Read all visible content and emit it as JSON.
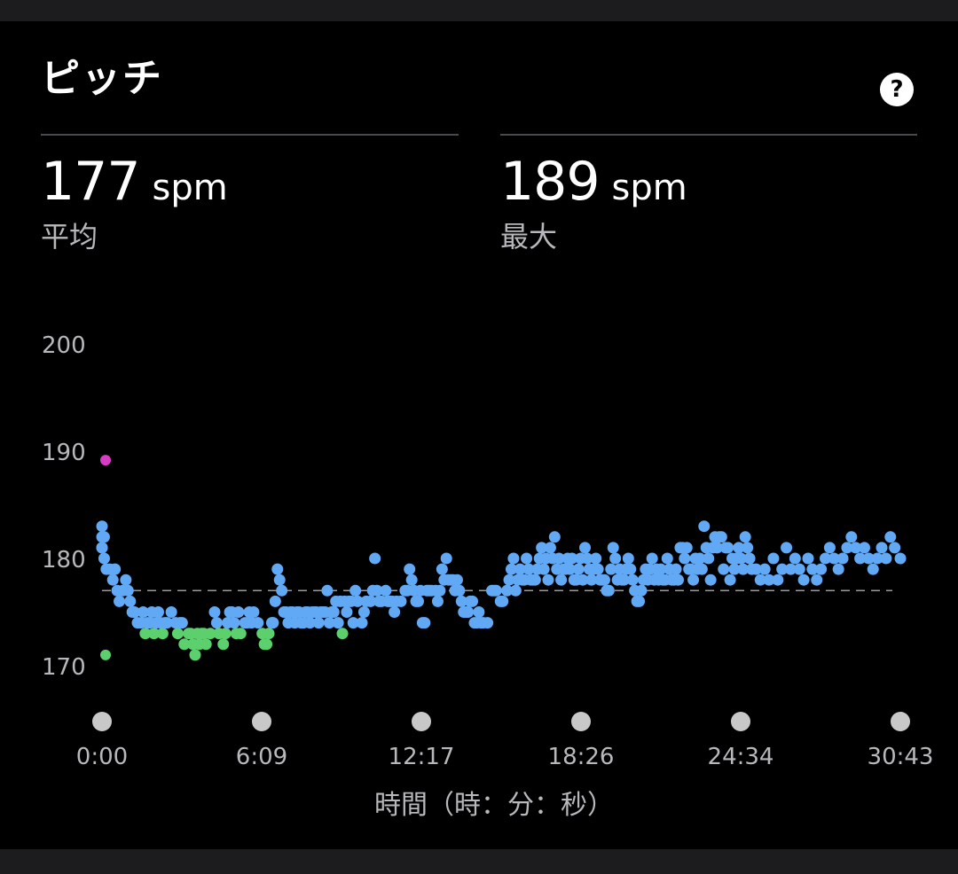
{
  "title": "ピッチ",
  "help_icon": "question-circle-icon",
  "help_glyph": "?",
  "stats": [
    {
      "value": "177",
      "unit": "spm",
      "label": "平均"
    },
    {
      "value": "189",
      "unit": "spm",
      "label": "最大"
    }
  ],
  "chart_data": {
    "type": "scatter",
    "xlabel": "時間（時：分：秒）",
    "ylabel": "",
    "x_tick_labels": [
      "0:00",
      "6:09",
      "12:17",
      "18:26",
      "24:34",
      "30:43"
    ],
    "x_range_seconds": [
      0,
      1843
    ],
    "y_ticks": [
      170,
      180,
      190,
      200
    ],
    "ylim": [
      166,
      200
    ],
    "average_line": 177,
    "colors": {
      "above_173": "#62a9f5",
      "below_174": "#5cd06c",
      "max": "#d63dc4",
      "average_line": "#9a9a9a",
      "tick_marker": "#c8c8c8"
    },
    "points": [
      [
        0,
        183
      ],
      [
        0,
        182
      ],
      [
        0,
        181
      ],
      [
        0,
        181
      ],
      [
        5,
        182
      ],
      [
        5,
        180
      ],
      [
        10,
        179
      ],
      [
        18,
        179
      ],
      [
        25,
        178
      ],
      [
        30,
        179
      ],
      [
        35,
        177
      ],
      [
        40,
        176
      ],
      [
        48,
        177
      ],
      [
        55,
        178
      ],
      [
        60,
        177
      ],
      [
        65,
        176
      ],
      [
        70,
        175
      ],
      [
        75,
        175
      ],
      [
        82,
        174
      ],
      [
        90,
        174
      ],
      [
        95,
        175
      ],
      [
        100,
        173
      ],
      [
        105,
        174
      ],
      [
        110,
        174
      ],
      [
        115,
        175
      ],
      [
        120,
        173
      ],
      [
        125,
        174
      ],
      [
        130,
        175
      ],
      [
        135,
        174
      ],
      [
        140,
        173
      ],
      [
        145,
        174
      ],
      [
        150,
        174
      ],
      [
        160,
        175
      ],
      [
        170,
        174
      ],
      [
        175,
        173
      ],
      [
        180,
        174
      ],
      [
        185,
        174
      ],
      [
        190,
        172
      ],
      [
        200,
        173
      ],
      [
        205,
        173
      ],
      [
        210,
        172
      ],
      [
        215,
        171
      ],
      [
        220,
        173
      ],
      [
        225,
        172
      ],
      [
        230,
        173
      ],
      [
        235,
        173
      ],
      [
        240,
        172
      ],
      [
        250,
        173
      ],
      [
        260,
        175
      ],
      [
        265,
        174
      ],
      [
        270,
        173
      ],
      [
        280,
        172
      ],
      [
        285,
        173
      ],
      [
        290,
        174
      ],
      [
        295,
        175
      ],
      [
        300,
        175
      ],
      [
        305,
        174
      ],
      [
        310,
        173
      ],
      [
        315,
        175
      ],
      [
        320,
        173
      ],
      [
        330,
        174
      ],
      [
        335,
        174
      ],
      [
        340,
        175
      ],
      [
        345,
        174
      ],
      [
        350,
        175
      ],
      [
        360,
        174
      ],
      [
        370,
        173
      ],
      [
        375,
        172
      ],
      [
        380,
        172
      ],
      [
        385,
        173
      ],
      [
        392,
        174
      ],
      [
        395,
        174
      ],
      [
        400,
        176
      ],
      [
        405,
        179
      ],
      [
        410,
        178
      ],
      [
        415,
        177
      ],
      [
        420,
        175
      ],
      [
        425,
        175
      ],
      [
        430,
        174
      ],
      [
        435,
        175
      ],
      [
        440,
        175
      ],
      [
        445,
        174
      ],
      [
        450,
        175
      ],
      [
        455,
        175
      ],
      [
        460,
        174
      ],
      [
        465,
        174
      ],
      [
        470,
        175
      ],
      [
        475,
        175
      ],
      [
        480,
        174
      ],
      [
        485,
        175
      ],
      [
        490,
        175
      ],
      [
        495,
        175
      ],
      [
        500,
        174
      ],
      [
        505,
        175
      ],
      [
        510,
        175
      ],
      [
        515,
        175
      ],
      [
        520,
        177
      ],
      [
        525,
        174
      ],
      [
        530,
        175
      ],
      [
        535,
        175
      ],
      [
        540,
        176
      ],
      [
        545,
        174
      ],
      [
        550,
        176
      ],
      [
        555,
        173
      ],
      [
        560,
        176
      ],
      [
        565,
        175
      ],
      [
        570,
        176
      ],
      [
        575,
        176
      ],
      [
        580,
        174
      ],
      [
        585,
        177
      ],
      [
        590,
        176
      ],
      [
        600,
        174
      ],
      [
        605,
        175
      ],
      [
        610,
        176
      ],
      [
        620,
        176
      ],
      [
        625,
        177
      ],
      [
        630,
        180
      ],
      [
        635,
        177
      ],
      [
        640,
        176
      ],
      [
        645,
        176
      ],
      [
        655,
        177
      ],
      [
        660,
        176
      ],
      [
        665,
        176
      ],
      [
        670,
        176
      ],
      [
        675,
        175
      ],
      [
        680,
        176
      ],
      [
        690,
        176
      ],
      [
        700,
        177
      ],
      [
        705,
        177
      ],
      [
        710,
        179
      ],
      [
        715,
        178
      ],
      [
        720,
        177
      ],
      [
        725,
        176
      ],
      [
        730,
        176
      ],
      [
        735,
        177
      ],
      [
        740,
        174
      ],
      [
        745,
        174
      ],
      [
        750,
        177
      ],
      [
        755,
        177
      ],
      [
        760,
        177
      ],
      [
        770,
        177
      ],
      [
        775,
        176
      ],
      [
        780,
        177
      ],
      [
        785,
        179
      ],
      [
        790,
        178
      ],
      [
        795,
        180
      ],
      [
        800,
        178
      ],
      [
        805,
        178
      ],
      [
        810,
        178
      ],
      [
        815,
        177
      ],
      [
        820,
        178
      ],
      [
        825,
        177
      ],
      [
        830,
        176
      ],
      [
        835,
        175
      ],
      [
        840,
        175
      ],
      [
        845,
        175
      ],
      [
        850,
        176
      ],
      [
        855,
        176
      ],
      [
        860,
        174
      ],
      [
        865,
        174
      ],
      [
        870,
        175
      ],
      [
        875,
        174
      ],
      [
        880,
        174
      ],
      [
        890,
        174
      ],
      [
        900,
        177
      ],
      [
        905,
        177
      ],
      [
        910,
        177
      ],
      [
        920,
        176
      ],
      [
        925,
        176
      ],
      [
        935,
        177
      ],
      [
        940,
        178
      ],
      [
        945,
        179
      ],
      [
        950,
        180
      ],
      [
        955,
        177
      ],
      [
        960,
        178
      ],
      [
        965,
        179
      ],
      [
        970,
        178
      ],
      [
        975,
        178
      ],
      [
        980,
        180
      ],
      [
        985,
        179
      ],
      [
        990,
        178
      ],
      [
        995,
        178
      ],
      [
        1000,
        178
      ],
      [
        1005,
        179
      ],
      [
        1010,
        180
      ],
      [
        1015,
        181
      ],
      [
        1020,
        179
      ],
      [
        1025,
        180
      ],
      [
        1030,
        178
      ],
      [
        1035,
        181
      ],
      [
        1040,
        180
      ],
      [
        1045,
        182
      ],
      [
        1050,
        179
      ],
      [
        1055,
        180
      ],
      [
        1060,
        178
      ],
      [
        1065,
        179
      ],
      [
        1070,
        179
      ],
      [
        1075,
        180
      ],
      [
        1080,
        179
      ],
      [
        1085,
        180
      ],
      [
        1090,
        178
      ],
      [
        1095,
        178
      ],
      [
        1100,
        179
      ],
      [
        1105,
        180
      ],
      [
        1110,
        178
      ],
      [
        1115,
        181
      ],
      [
        1120,
        180
      ],
      [
        1125,
        179
      ],
      [
        1130,
        178
      ],
      [
        1135,
        179
      ],
      [
        1140,
        180
      ],
      [
        1145,
        179
      ],
      [
        1150,
        178
      ],
      [
        1155,
        178
      ],
      [
        1160,
        178
      ],
      [
        1165,
        177
      ],
      [
        1170,
        177
      ],
      [
        1175,
        179
      ],
      [
        1180,
        181
      ],
      [
        1185,
        180
      ],
      [
        1190,
        178
      ],
      [
        1195,
        179
      ],
      [
        1200,
        178
      ],
      [
        1205,
        178
      ],
      [
        1210,
        179
      ],
      [
        1215,
        180
      ],
      [
        1220,
        179
      ],
      [
        1225,
        178
      ],
      [
        1230,
        177
      ],
      [
        1235,
        176
      ],
      [
        1240,
        176
      ],
      [
        1245,
        177
      ],
      [
        1250,
        178
      ],
      [
        1255,
        179
      ],
      [
        1260,
        178
      ],
      [
        1265,
        179
      ],
      [
        1270,
        180
      ],
      [
        1275,
        178
      ],
      [
        1280,
        179
      ],
      [
        1285,
        178
      ],
      [
        1290,
        179
      ],
      [
        1295,
        178
      ],
      [
        1300,
        178
      ],
      [
        1305,
        180
      ],
      [
        1310,
        179
      ],
      [
        1315,
        178
      ],
      [
        1320,
        178
      ],
      [
        1325,
        179
      ],
      [
        1330,
        178
      ],
      [
        1335,
        181
      ],
      [
        1340,
        181
      ],
      [
        1345,
        180
      ],
      [
        1350,
        181
      ],
      [
        1355,
        179
      ],
      [
        1360,
        179
      ],
      [
        1365,
        178
      ],
      [
        1370,
        180
      ],
      [
        1375,
        179
      ],
      [
        1380,
        180
      ],
      [
        1385,
        179
      ],
      [
        1390,
        183
      ],
      [
        1395,
        181
      ],
      [
        1400,
        180
      ],
      [
        1405,
        178
      ],
      [
        1410,
        181
      ],
      [
        1415,
        182
      ],
      [
        1420,
        181
      ],
      [
        1425,
        182
      ],
      [
        1430,
        182
      ],
      [
        1435,
        179
      ],
      [
        1440,
        181
      ],
      [
        1445,
        181
      ],
      [
        1450,
        178
      ],
      [
        1455,
        180
      ],
      [
        1460,
        179
      ],
      [
        1465,
        180
      ],
      [
        1470,
        181
      ],
      [
        1475,
        180
      ],
      [
        1480,
        179
      ],
      [
        1485,
        182
      ],
      [
        1490,
        181
      ],
      [
        1495,
        180
      ],
      [
        1500,
        179
      ],
      [
        1510,
        179
      ],
      [
        1520,
        178
      ],
      [
        1530,
        179
      ],
      [
        1540,
        178
      ],
      [
        1550,
        180
      ],
      [
        1560,
        178
      ],
      [
        1570,
        179
      ],
      [
        1580,
        181
      ],
      [
        1590,
        179
      ],
      [
        1600,
        180
      ],
      [
        1610,
        179
      ],
      [
        1620,
        178
      ],
      [
        1630,
        180
      ],
      [
        1640,
        179
      ],
      [
        1650,
        178
      ],
      [
        1660,
        179
      ],
      [
        1670,
        180
      ],
      [
        1680,
        181
      ],
      [
        1690,
        180
      ],
      [
        1700,
        179
      ],
      [
        1710,
        180
      ],
      [
        1720,
        181
      ],
      [
        1730,
        182
      ],
      [
        1740,
        181
      ],
      [
        1750,
        180
      ],
      [
        1760,
        181
      ],
      [
        1770,
        180
      ],
      [
        1780,
        179
      ],
      [
        1790,
        180
      ],
      [
        1800,
        181
      ],
      [
        1810,
        180
      ],
      [
        1820,
        182
      ],
      [
        1830,
        181
      ],
      [
        1843,
        180
      ]
    ],
    "max_point": [
      0,
      189
    ],
    "min_point": [
      0,
      171
    ]
  }
}
